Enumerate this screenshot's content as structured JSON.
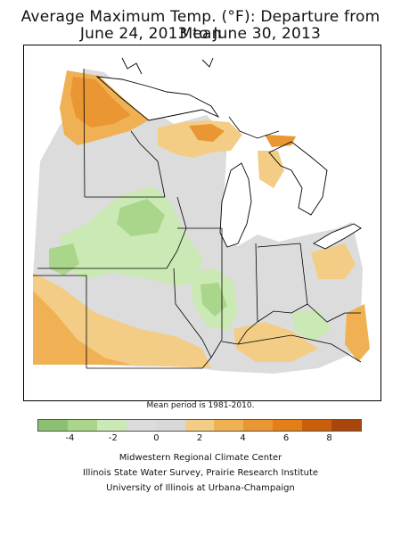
{
  "title_line1": "Average Maximum Temp. (°F): Departure from Mean",
  "title_line2": "June 24, 2013 to June 30, 2013",
  "mean_note": "Mean period is 1981-2010.",
  "legend": {
    "colors": [
      "#8bbf71",
      "#a9d68a",
      "#cbe9b4",
      "#dcdcdc",
      "#d8d8d8",
      "#f3cd85",
      "#efb153",
      "#ea9733",
      "#e27f17",
      "#c95f0a",
      "#a9470b"
    ],
    "ticks": [
      "-4",
      "-2",
      "0",
      "2",
      "4",
      "6",
      "8"
    ],
    "tick_values": [
      -4,
      -2,
      0,
      2,
      4,
      6,
      8
    ],
    "range": [
      -5.5,
      9.5
    ]
  },
  "credits": {
    "line1": "Midwestern Regional Climate Center",
    "line2": "Illinois State Water Survey, Prairie Research Institute",
    "line3": "University of Illinois at Urbana-Champaign"
  }
}
